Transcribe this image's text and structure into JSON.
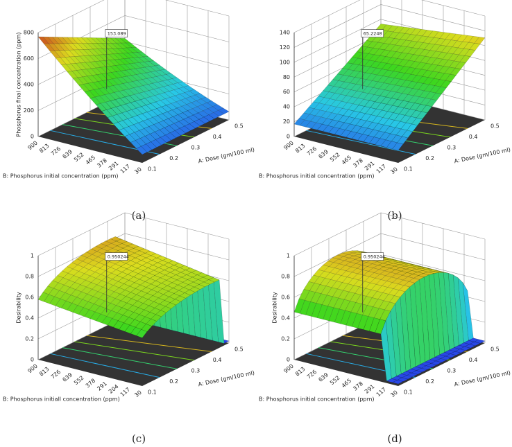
{
  "panels": [
    {
      "caption": "(a)",
      "z_label": "Phosphorus final concentration (ppm)",
      "z_ticks": [
        "0",
        "200",
        "400",
        "600",
        "800"
      ],
      "flag": "153.089",
      "y_label": "B: Phosphorus initial concentration (ppm)",
      "y_ticks": [
        "900",
        "813",
        "726",
        "639",
        "552",
        "465",
        "378",
        "291",
        "117",
        "30"
      ],
      "x_label": "A: Dose  (gm/100 ml)",
      "x_ticks": [
        "0.1",
        "0.2",
        "0.3",
        "0.4",
        "0.5"
      ]
    },
    {
      "caption": "(b)",
      "z_label": "",
      "z_ticks": [
        "0",
        "20",
        "40",
        "60",
        "80",
        "100",
        "120",
        "140"
      ],
      "flag": "65.2248",
      "y_label": "B: Phosphorus initial concentration (ppm)",
      "y_ticks": [
        "900",
        "813",
        "726",
        "639",
        "552",
        "465",
        "378",
        "291",
        "117",
        "30"
      ],
      "x_label": "A: Dose  (gm/100 ml)",
      "x_ticks": [
        "0.1",
        "0.2",
        "0.3",
        "0.4",
        "0.5"
      ]
    },
    {
      "caption": "(c)",
      "z_label": "Desirability",
      "z_ticks": [
        "0",
        "0.2",
        "0.4",
        "0.6",
        "0.8",
        "1"
      ],
      "flag": "0.950244",
      "y_label": "B: Phosphorus initiall concentration (ppm)",
      "y_ticks": [
        "900",
        "813",
        "726",
        "639",
        "552",
        "378",
        "291",
        "204",
        "117",
        "30"
      ],
      "x_label": "A: Dose  (gm/100 ml)",
      "x_ticks": [
        "0.1",
        "0.2",
        "0.3",
        "0.4",
        "0.5"
      ]
    },
    {
      "caption": "(d)",
      "z_label": "Desirability",
      "z_ticks": [
        "0",
        "0.2",
        "0.4",
        "0.6",
        "0.8",
        "1"
      ],
      "flag": "0.950244",
      "y_label": "B: Phosphorus initial concentration (ppm)",
      "y_ticks": [
        "900",
        "813",
        "726",
        "639",
        "552",
        "465",
        "378",
        "291",
        "117",
        "30"
      ],
      "x_label": "A: Dose  (gm/100 ml)",
      "x_ticks": [
        "0.1",
        "0.2",
        "0.3",
        "0.4",
        "0.5"
      ]
    }
  ]
}
